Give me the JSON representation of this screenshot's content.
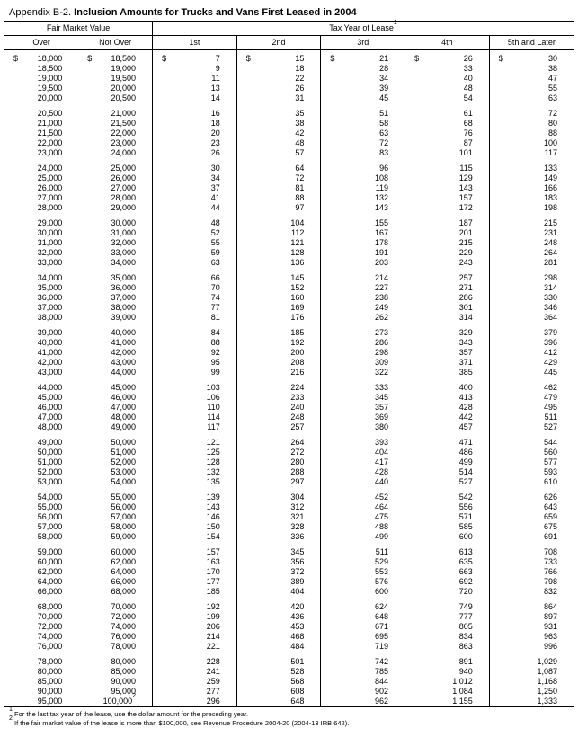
{
  "title_prefix": "Appendix B-2.",
  "title_main": "Inclusion Amounts for Trucks and Vans First Leased in 2004",
  "header_fmv": "Fair Market Value",
  "header_tax": "Tax Year of Lease",
  "header_tax_sup": "1",
  "cols": [
    "Over",
    "Not Over",
    "1st",
    "2nd",
    "3rd",
    "4th",
    "5th and Later"
  ],
  "dollar": "$",
  "groups": [
    [
      [
        "18,000",
        "18,500",
        "7",
        "15",
        "21",
        "26",
        "30"
      ],
      [
        "18,500",
        "19,000",
        "9",
        "18",
        "28",
        "33",
        "38"
      ],
      [
        "19,000",
        "19,500",
        "11",
        "22",
        "34",
        "40",
        "47"
      ],
      [
        "19,500",
        "20,000",
        "13",
        "26",
        "39",
        "48",
        "55"
      ],
      [
        "20,000",
        "20,500",
        "14",
        "31",
        "45",
        "54",
        "63"
      ]
    ],
    [
      [
        "20,500",
        "21,000",
        "16",
        "35",
        "51",
        "61",
        "72"
      ],
      [
        "21,000",
        "21,500",
        "18",
        "38",
        "58",
        "68",
        "80"
      ],
      [
        "21,500",
        "22,000",
        "20",
        "42",
        "63",
        "76",
        "88"
      ],
      [
        "22,000",
        "23,000",
        "23",
        "48",
        "72",
        "87",
        "100"
      ],
      [
        "23,000",
        "24,000",
        "26",
        "57",
        "83",
        "101",
        "117"
      ]
    ],
    [
      [
        "24,000",
        "25,000",
        "30",
        "64",
        "96",
        "115",
        "133"
      ],
      [
        "25,000",
        "26,000",
        "34",
        "72",
        "108",
        "129",
        "149"
      ],
      [
        "26,000",
        "27,000",
        "37",
        "81",
        "119",
        "143",
        "166"
      ],
      [
        "27,000",
        "28,000",
        "41",
        "88",
        "132",
        "157",
        "183"
      ],
      [
        "28,000",
        "29,000",
        "44",
        "97",
        "143",
        "172",
        "198"
      ]
    ],
    [
      [
        "29,000",
        "30,000",
        "48",
        "104",
        "155",
        "187",
        "215"
      ],
      [
        "30,000",
        "31,000",
        "52",
        "112",
        "167",
        "201",
        "231"
      ],
      [
        "31,000",
        "32,000",
        "55",
        "121",
        "178",
        "215",
        "248"
      ],
      [
        "32,000",
        "33,000",
        "59",
        "128",
        "191",
        "229",
        "264"
      ],
      [
        "33,000",
        "34,000",
        "63",
        "136",
        "203",
        "243",
        "281"
      ]
    ],
    [
      [
        "34,000",
        "35,000",
        "66",
        "145",
        "214",
        "257",
        "298"
      ],
      [
        "35,000",
        "36,000",
        "70",
        "152",
        "227",
        "271",
        "314"
      ],
      [
        "36,000",
        "37,000",
        "74",
        "160",
        "238",
        "286",
        "330"
      ],
      [
        "37,000",
        "38,000",
        "77",
        "169",
        "249",
        "301",
        "346"
      ],
      [
        "38,000",
        "39,000",
        "81",
        "176",
        "262",
        "314",
        "364"
      ]
    ],
    [
      [
        "39,000",
        "40,000",
        "84",
        "185",
        "273",
        "329",
        "379"
      ],
      [
        "40,000",
        "41,000",
        "88",
        "192",
        "286",
        "343",
        "396"
      ],
      [
        "41,000",
        "42,000",
        "92",
        "200",
        "298",
        "357",
        "412"
      ],
      [
        "42,000",
        "43,000",
        "95",
        "208",
        "309",
        "371",
        "429"
      ],
      [
        "43,000",
        "44,000",
        "99",
        "216",
        "322",
        "385",
        "445"
      ]
    ],
    [
      [
        "44,000",
        "45,000",
        "103",
        "224",
        "333",
        "400",
        "462"
      ],
      [
        "45,000",
        "46,000",
        "106",
        "233",
        "345",
        "413",
        "479"
      ],
      [
        "46,000",
        "47,000",
        "110",
        "240",
        "357",
        "428",
        "495"
      ],
      [
        "47,000",
        "48,000",
        "114",
        "248",
        "369",
        "442",
        "511"
      ],
      [
        "48,000",
        "49,000",
        "117",
        "257",
        "380",
        "457",
        "527"
      ]
    ],
    [
      [
        "49,000",
        "50,000",
        "121",
        "264",
        "393",
        "471",
        "544"
      ],
      [
        "50,000",
        "51,000",
        "125",
        "272",
        "404",
        "486",
        "560"
      ],
      [
        "51,000",
        "52,000",
        "128",
        "280",
        "417",
        "499",
        "577"
      ],
      [
        "52,000",
        "53,000",
        "132",
        "288",
        "428",
        "514",
        "593"
      ],
      [
        "53,000",
        "54,000",
        "135",
        "297",
        "440",
        "527",
        "610"
      ]
    ],
    [
      [
        "54,000",
        "55,000",
        "139",
        "304",
        "452",
        "542",
        "626"
      ],
      [
        "55,000",
        "56,000",
        "143",
        "312",
        "464",
        "556",
        "643"
      ],
      [
        "56,000",
        "57,000",
        "146",
        "321",
        "475",
        "571",
        "659"
      ],
      [
        "57,000",
        "58,000",
        "150",
        "328",
        "488",
        "585",
        "675"
      ],
      [
        "58,000",
        "59,000",
        "154",
        "336",
        "499",
        "600",
        "691"
      ]
    ],
    [
      [
        "59,000",
        "60,000",
        "157",
        "345",
        "511",
        "613",
        "708"
      ],
      [
        "60,000",
        "62,000",
        "163",
        "356",
        "529",
        "635",
        "733"
      ],
      [
        "62,000",
        "64,000",
        "170",
        "372",
        "553",
        "663",
        "766"
      ],
      [
        "64,000",
        "66,000",
        "177",
        "389",
        "576",
        "692",
        "798"
      ],
      [
        "66,000",
        "68,000",
        "185",
        "404",
        "600",
        "720",
        "832"
      ]
    ],
    [
      [
        "68,000",
        "70,000",
        "192",
        "420",
        "624",
        "749",
        "864"
      ],
      [
        "70,000",
        "72,000",
        "199",
        "436",
        "648",
        "777",
        "897"
      ],
      [
        "72,000",
        "74,000",
        "206",
        "453",
        "671",
        "805",
        "931"
      ],
      [
        "74,000",
        "76,000",
        "214",
        "468",
        "695",
        "834",
        "963"
      ],
      [
        "76,000",
        "78,000",
        "221",
        "484",
        "719",
        "863",
        "996"
      ]
    ],
    [
      [
        "78,000",
        "80,000",
        "228",
        "501",
        "742",
        "891",
        "1,029"
      ],
      [
        "80,000",
        "85,000",
        "241",
        "528",
        "785",
        "940",
        "1,087"
      ],
      [
        "85,000",
        "90,000",
        "259",
        "568",
        "844",
        "1,012",
        "1,168"
      ],
      [
        "90,000",
        "95,000",
        "277",
        "608",
        "902",
        "1,084",
        "1,250"
      ],
      [
        "95,000",
        "100,000",
        "296",
        "648",
        "962",
        "1,155",
        "1,333"
      ]
    ]
  ],
  "last_notover_sup": "2",
  "footnote1_sup": "1",
  "footnote1": " For the last tax year of the lease, use the dollar amount for the preceding year.",
  "footnote2_sup": "2",
  "footnote2": " If the fair market value of the lease is more than $100,000, see Revenue Procedure 2004-20 (2004-13 IRB 642)."
}
